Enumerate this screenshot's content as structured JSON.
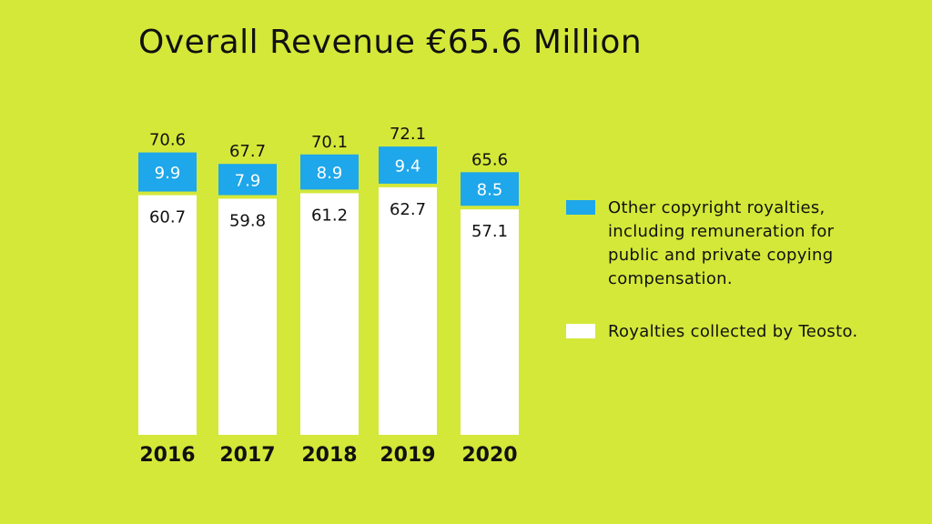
{
  "chart_data": {
    "type": "bar",
    "stacked": true,
    "title": "Overall Revenue €65.6 Million",
    "categories": [
      "2016",
      "2017",
      "2018",
      "2019",
      "2020"
    ],
    "series": [
      {
        "name": "Royalties collected by Teosto.",
        "color": "#ffffff",
        "values": [
          60.7,
          59.8,
          61.2,
          62.7,
          57.1
        ],
        "labels": [
          "60.7",
          "59.8",
          "61.2",
          "62.7",
          "57.1"
        ]
      },
      {
        "name": "Other copyright royalties, including remuneration for public and private copying compensation.",
        "color": "#1ea7ea",
        "values": [
          9.9,
          7.9,
          8.9,
          9.4,
          8.5
        ],
        "labels": [
          "9.9",
          "7.9",
          "8.9",
          "9.4",
          "8.5"
        ]
      }
    ],
    "totals": [
      "70.6",
      "67.7",
      "70.1",
      "72.1",
      "65.6"
    ],
    "ylim": [
      0,
      72.1
    ],
    "grid": false,
    "legend_position": "right",
    "legend": [
      {
        "lines": [
          "Other copyright royalties,",
          "including remuneration for",
          "public and private copying",
          "compensation."
        ],
        "color": "#1ea7ea"
      },
      {
        "lines": [
          "Royalties collected by Teosto."
        ],
        "color": "#ffffff"
      }
    ]
  }
}
